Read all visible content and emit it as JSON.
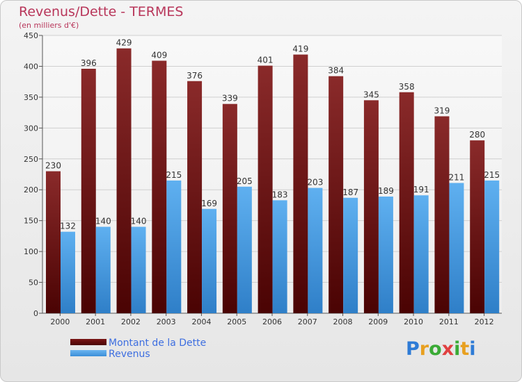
{
  "chart_data": {
    "type": "bar",
    "title": "Revenus/Dette - TERMES",
    "subtitle": "(en milliers d'€)",
    "categories": [
      "2000",
      "2001",
      "2002",
      "2003",
      "2004",
      "2005",
      "2006",
      "2007",
      "2008",
      "2009",
      "2010",
      "2011",
      "2012"
    ],
    "series": [
      {
        "name": "Montant de la Dette",
        "color": "#6e1010",
        "values": [
          230,
          396,
          429,
          409,
          376,
          339,
          401,
          419,
          384,
          345,
          358,
          319,
          280
        ]
      },
      {
        "name": "Revenus",
        "color": "#4aa0e6",
        "values": [
          132,
          140,
          140,
          215,
          169,
          205,
          183,
          203,
          187,
          189,
          191,
          211,
          215
        ]
      }
    ],
    "ylim": [
      0,
      450
    ],
    "yticks": [
      0,
      50,
      100,
      150,
      200,
      250,
      300,
      350,
      400,
      450
    ],
    "grid": true,
    "legend_position": "bottom-left"
  },
  "logo": {
    "letters": [
      "P",
      "r",
      "o",
      "x",
      "i",
      "t",
      "i"
    ],
    "colors": [
      "#2e7bd6",
      "#e8a020",
      "#3aaa35",
      "#e04040",
      "#3aaa35",
      "#e8a020",
      "#2e7bd6"
    ]
  }
}
